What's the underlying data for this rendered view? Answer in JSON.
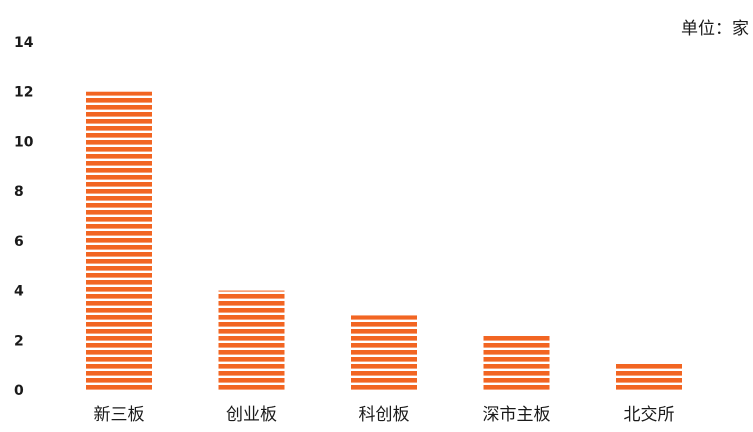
{
  "unit_label": "单位：家",
  "chart_data": {
    "type": "bar",
    "categories": [
      "新三板",
      "创业板",
      "科创板",
      "深市主板",
      "北交所"
    ],
    "values": [
      12,
      4,
      3,
      2.2,
      1.1
    ],
    "ylim": [
      0,
      14
    ],
    "yticks": [
      0,
      2,
      4,
      6,
      8,
      10,
      12,
      14
    ],
    "title": "",
    "xlabel": "",
    "ylabel": "",
    "grid": false,
    "legend": "none",
    "colors": {
      "bar": "#f26522",
      "bar_stripe": "#ffffff",
      "axis_text": "#1a1a1a"
    }
  }
}
